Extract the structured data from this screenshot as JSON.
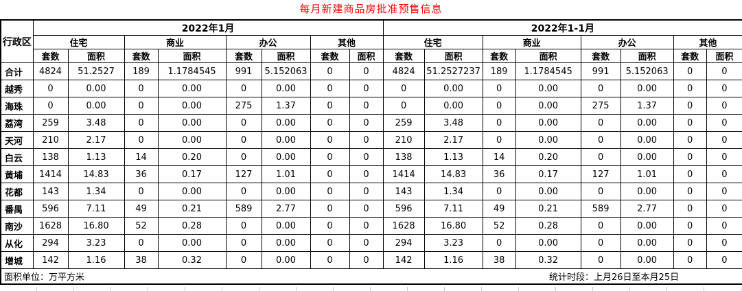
{
  "title": "每月新建商品房批准预售信息",
  "title_color": "#ff0000",
  "table": {
    "corner_header": "行政区",
    "groups": [
      {
        "label": "2022年1月"
      },
      {
        "label": "2022年1-1月"
      }
    ],
    "categories": [
      "住宅",
      "商业",
      "办公",
      "其他"
    ],
    "sub_headers": [
      "套数",
      "面积"
    ],
    "rows": [
      {
        "label": "合计",
        "values": [
          "4824",
          "51.2527",
          "189",
          "1.1784545",
          "991",
          "5.152063",
          "0",
          "0",
          "4824",
          "51.2527237",
          "189",
          "1.1784545",
          "991",
          "5.152063",
          "0",
          "0"
        ]
      },
      {
        "label": "越秀",
        "values": [
          "0",
          "0.00",
          "0",
          "0.00",
          "0",
          "0.00",
          "0",
          "0",
          "0",
          "0.00",
          "0",
          "0.00",
          "0",
          "0.00",
          "0",
          "0"
        ]
      },
      {
        "label": "海珠",
        "values": [
          "0",
          "0.00",
          "0",
          "0.00",
          "275",
          "1.37",
          "0",
          "0",
          "0",
          "0.00",
          "0",
          "0.00",
          "275",
          "1.37",
          "0",
          "0"
        ]
      },
      {
        "label": "荔湾",
        "values": [
          "259",
          "3.48",
          "0",
          "0.00",
          "0",
          "0.00",
          "0",
          "0",
          "259",
          "3.48",
          "0",
          "0.00",
          "0",
          "0.00",
          "0",
          "0"
        ]
      },
      {
        "label": "天河",
        "values": [
          "210",
          "2.17",
          "0",
          "0.00",
          "0",
          "0.00",
          "0",
          "0",
          "210",
          "2.17",
          "0",
          "0.00",
          "0",
          "0.00",
          "0",
          "0"
        ]
      },
      {
        "label": "白云",
        "values": [
          "138",
          "1.13",
          "14",
          "0.20",
          "0",
          "0.00",
          "0",
          "0",
          "138",
          "1.13",
          "14",
          "0.20",
          "0",
          "0.00",
          "0",
          "0"
        ]
      },
      {
        "label": "黄埔",
        "values": [
          "1414",
          "14.83",
          "36",
          "0.17",
          "127",
          "1.01",
          "0",
          "0",
          "1414",
          "14.83",
          "36",
          "0.17",
          "127",
          "1.01",
          "0",
          "0"
        ]
      },
      {
        "label": "花都",
        "values": [
          "143",
          "1.34",
          "0",
          "0.00",
          "0",
          "0.00",
          "0",
          "0",
          "143",
          "1.34",
          "0",
          "0.00",
          "0",
          "0.00",
          "0",
          "0"
        ]
      },
      {
        "label": "番禺",
        "values": [
          "596",
          "7.11",
          "49",
          "0.21",
          "589",
          "2.77",
          "0",
          "0",
          "596",
          "7.11",
          "49",
          "0.21",
          "589",
          "2.77",
          "0",
          "0"
        ]
      },
      {
        "label": "南沙",
        "values": [
          "1628",
          "16.80",
          "52",
          "0.28",
          "0",
          "0.00",
          "0",
          "0",
          "1628",
          "16.80",
          "52",
          "0.28",
          "0",
          "0.00",
          "0",
          "0"
        ]
      },
      {
        "label": "从化",
        "values": [
          "294",
          "3.23",
          "0",
          "0.00",
          "0",
          "0.00",
          "0",
          "0",
          "294",
          "3.23",
          "0",
          "0.00",
          "0",
          "0.00",
          "0",
          "0"
        ]
      },
      {
        "label": "增城",
        "values": [
          "142",
          "1.16",
          "38",
          "0.32",
          "0",
          "0.00",
          "0",
          "0",
          "142",
          "1.16",
          "38",
          "0.32",
          "0",
          "0.00",
          "0",
          "0"
        ]
      }
    ]
  },
  "footer": {
    "left": "面积单位：万平方米",
    "right": "统计时段：上月26日至本月25日"
  }
}
